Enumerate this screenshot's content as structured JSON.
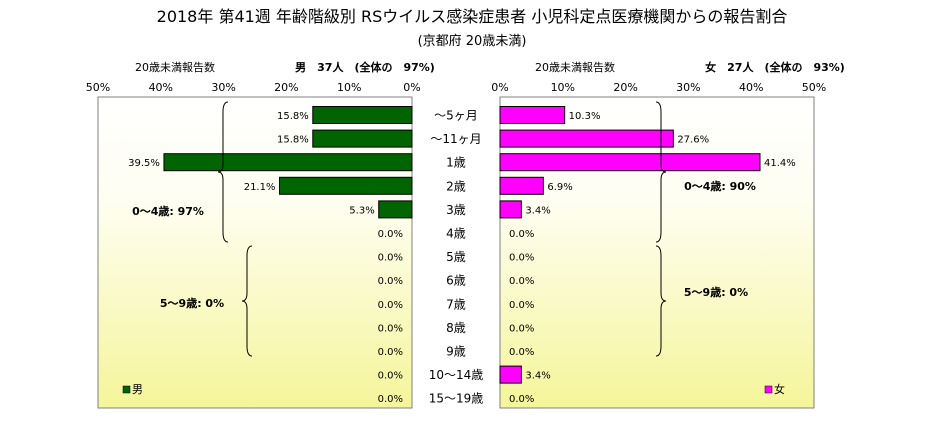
{
  "title": "2018年 第41週 年齢階級別 RSウイルス感染症患者 小児科定点医療機関からの報告割合",
  "subtitle": "(京都府 20歳未満)",
  "left_header": {
    "caption": "20歳未満報告数",
    "summary": "男　37人　(全体の　97%)"
  },
  "right_header": {
    "caption": "20歳未満報告数",
    "summary": "女　27人　(全体の　93%)"
  },
  "chart_data": {
    "type": "bar",
    "layout": "population-pyramid",
    "categories": [
      "～5ヶ月",
      "～11ヶ月",
      "1歳",
      "2歳",
      "3歳",
      "4歳",
      "5歳",
      "6歳",
      "7歳",
      "8歳",
      "9歳",
      "10～14歳",
      "15～19歳"
    ],
    "series": [
      {
        "name": "男",
        "color": "#006400",
        "values": [
          15.8,
          15.8,
          39.5,
          21.1,
          5.3,
          0,
          0,
          0,
          0,
          0,
          0,
          0,
          0
        ],
        "labels": [
          "15.8%",
          "15.8%",
          "39.5%",
          "21.1%",
          "5.3%",
          "0.0%",
          "0.0%",
          "0.0%",
          "0.0%",
          "0.0%",
          "0.0%",
          "0.0%",
          "0.0%"
        ]
      },
      {
        "name": "女",
        "color": "#ff00ff",
        "values": [
          10.3,
          27.6,
          41.4,
          6.9,
          3.4,
          0,
          0,
          0,
          0,
          0,
          0,
          3.4,
          0
        ],
        "labels": [
          "10.3%",
          "27.6%",
          "41.4%",
          "6.9%",
          "3.4%",
          "0.0%",
          "0.0%",
          "0.0%",
          "0.0%",
          "0.0%",
          "0.0%",
          "3.4%",
          "0.0%"
        ]
      }
    ],
    "xlim": [
      0,
      50
    ],
    "xticks": [
      "0%",
      "10%",
      "20%",
      "30%",
      "40%",
      "50%"
    ],
    "legend_left": "男",
    "legend_right": "女",
    "annotations": {
      "male_0_4": "0～4歳: 97%",
      "male_5_9": "5～9歳: 0%",
      "female_0_4": "0～4歳: 90%",
      "female_5_9": "5～9歳: 0%"
    },
    "plot_background": "yellow-gradient",
    "grid": false
  }
}
